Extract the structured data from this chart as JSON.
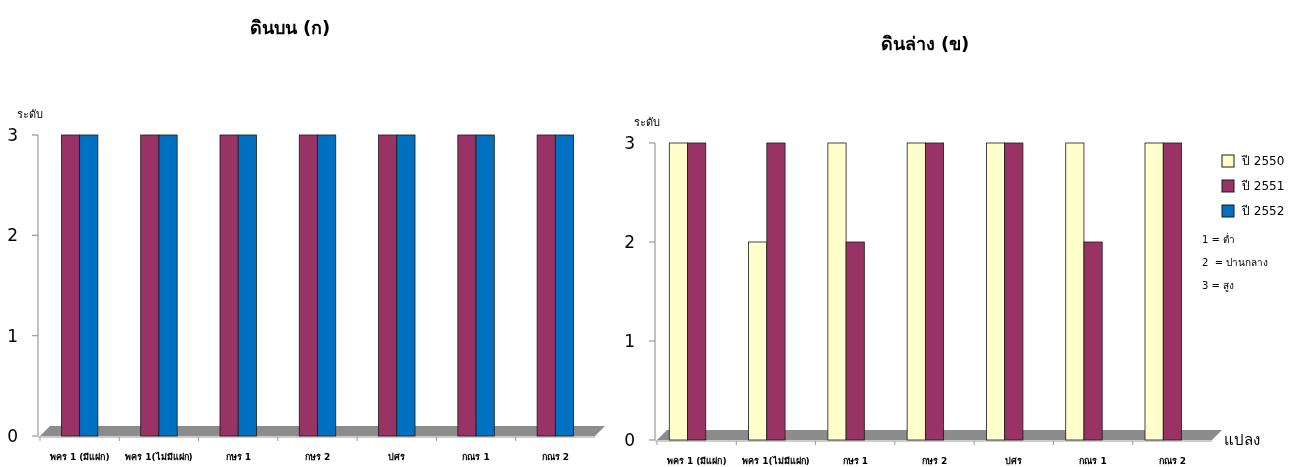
{
  "chart_data": [
    {
      "type": "bar",
      "title": "ดินบน (ก)",
      "ylabel": "ระดับ",
      "categories": [
        "พคร 1 (มีแฝก)",
        "พคร 1(ไม่มีแฝก)",
        "กษร 1",
        "กษร 2",
        "ปศร",
        "กณร 1",
        "กณร 2"
      ],
      "series": [
        {
          "color": "#993366",
          "values": [
            3,
            3,
            3,
            3,
            3,
            3,
            3
          ]
        },
        {
          "color": "#0070c0",
          "values": [
            3,
            3,
            3,
            3,
            3,
            3,
            3
          ]
        }
      ],
      "ylim": [
        0,
        3
      ],
      "yticks": [
        0,
        1,
        2,
        3
      ]
    },
    {
      "type": "bar",
      "title": "ดินล่าง (ข)",
      "ylabel": "ระดับ",
      "xlabel": "แปลง",
      "categories": [
        "พคร 1 (มีแฝก)",
        "พคร 1(ไม่มีแฝก)",
        "กษร 1",
        "กษร 2",
        "ปศร",
        "กณร 1",
        "กณร 2"
      ],
      "series": [
        {
          "name": "ปี 2550",
          "color": "#ffffcc",
          "values": [
            3,
            2,
            3,
            3,
            3,
            3,
            3
          ]
        },
        {
          "name": "ปี 2551",
          "color": "#993366",
          "values": [
            3,
            3,
            2,
            3,
            3,
            2,
            3
          ]
        },
        {
          "name": "ปี 2552",
          "color": "#0070c0",
          "values": [
            0,
            null,
            null,
            null,
            null,
            null,
            null
          ]
        }
      ],
      "ylim": [
        0,
        3
      ],
      "yticks": [
        0,
        1,
        2,
        3
      ],
      "legend": "right",
      "annotations": [
        "1 = ต่ำ",
        "2  = ปานกลาง",
        "3 = สูง"
      ]
    }
  ]
}
